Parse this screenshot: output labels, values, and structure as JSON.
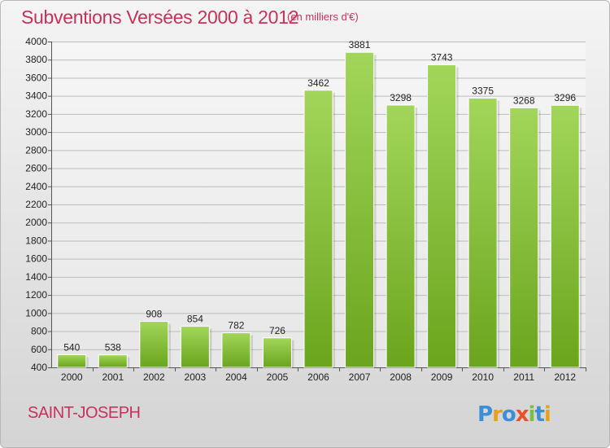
{
  "header": {
    "title": "Subventions Versées 2000 à 2012",
    "unit_note": "(en milliers d'€)"
  },
  "footer": {
    "city": "SAINT-JOSEPH",
    "logo_text": "Proxiti"
  },
  "colors": {
    "title": "#c8325a",
    "bar_light": "#a2d65a",
    "bar_dark": "#6aa51d",
    "logo_letters": [
      "#3a8fd8",
      "#e8a020",
      "#3a8fd8",
      "#e8502a",
      "#7ac143",
      "#3a8fd8",
      "#e8a020"
    ]
  },
  "chart_data": {
    "type": "bar",
    "title": "Subventions Versées 2000 à 2012",
    "subtitle": "(en milliers d'€)",
    "xlabel": "",
    "ylabel": "",
    "categories": [
      "2000",
      "2001",
      "2002",
      "2003",
      "2004",
      "2005",
      "2006",
      "2007",
      "2008",
      "2009",
      "2010",
      "2011",
      "2012"
    ],
    "values": [
      540,
      538,
      908,
      854,
      782,
      726,
      3462,
      3881,
      3298,
      3743,
      3375,
      3268,
      3296
    ],
    "ylim": [
      400,
      4000
    ],
    "yticks": [
      400,
      600,
      800,
      1000,
      1200,
      1400,
      1600,
      1800,
      2000,
      2200,
      2400,
      2600,
      2800,
      3000,
      3200,
      3400,
      3600,
      3800,
      4000
    ],
    "grid": true,
    "legend": "none",
    "data_labels": true
  }
}
